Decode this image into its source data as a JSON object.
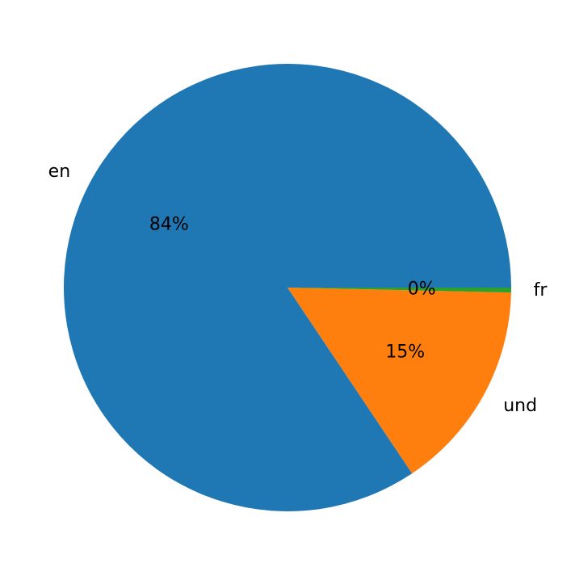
{
  "chart_data": {
    "type": "pie",
    "categories": [
      "en",
      "und",
      "fr"
    ],
    "values": [
      84.4,
      15.25,
      0.35
    ],
    "pct_labels": [
      "84%",
      "15%",
      "0%"
    ],
    "colors": [
      "#1f77b4",
      "#ff7f0e",
      "#2ca02c"
    ],
    "start_angle_deg": 0,
    "direction": "counterclockwise",
    "title": ""
  }
}
